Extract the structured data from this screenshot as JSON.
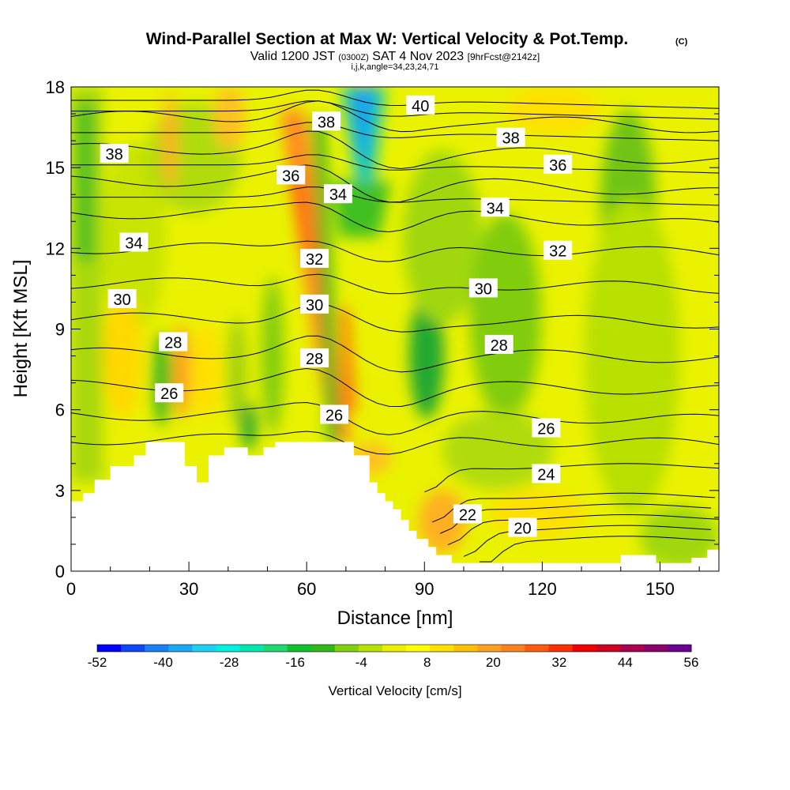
{
  "chart_data": {
    "type": "heatmap",
    "title": "Wind-Parallel Section at Max W: Vertical Velocity & Pot.Temp.",
    "title_mark": "(C)",
    "subtitle": {
      "prefix": "Valid 1200 JST",
      "utc": "(0300Z)",
      "date": "SAT 4 Nov 2023",
      "fcst": "[9hrFcst@2142z]"
    },
    "indices": "i,j,k,angle=34,23,24,71",
    "xlabel": "Distance [nm]",
    "ylabel": "Height [Kft MSL]",
    "xlim": [
      0,
      165
    ],
    "ylim": [
      0,
      18
    ],
    "x_ticks": [
      "0",
      "30",
      "60",
      "90",
      "120",
      "150"
    ],
    "y_ticks": [
      "0",
      "3",
      "6",
      "9",
      "12",
      "15",
      "18"
    ],
    "colorbar": {
      "label": "Vertical Velocity [cm/s]",
      "ticks": [
        "-52",
        "-40",
        "-28",
        "-16",
        "-4",
        "8",
        "20",
        "32",
        "44",
        "56"
      ],
      "colors": [
        "#0000ff",
        "#0d47f5",
        "#1a7ff0",
        "#1aa8f5",
        "#1fd0f5",
        "#00f0e0",
        "#00e8b0",
        "#20d870",
        "#10c030",
        "#30b818",
        "#80d010",
        "#b8e000",
        "#e8f000",
        "#ffff00",
        "#ffe000",
        "#ffc000",
        "#ffa020",
        "#ff8020",
        "#ff5a10",
        "#ff3000",
        "#ee0000",
        "#cc0020",
        "#aa0050",
        "#8a006a",
        "#6a0090"
      ]
    },
    "contours": {
      "variable": "potential temperature",
      "levels": [
        20,
        22,
        24,
        26,
        28,
        30,
        32,
        34,
        36,
        38,
        40
      ],
      "labels": [
        {
          "x": 11,
          "y": 15.5,
          "text": "38"
        },
        {
          "x": 16,
          "y": 12.2,
          "text": "34"
        },
        {
          "x": 13,
          "y": 10.1,
          "text": "30"
        },
        {
          "x": 26,
          "y": 8.5,
          "text": "28"
        },
        {
          "x": 25,
          "y": 6.6,
          "text": "26"
        },
        {
          "x": 56,
          "y": 14.7,
          "text": "36"
        },
        {
          "x": 65,
          "y": 16.7,
          "text": "38"
        },
        {
          "x": 68,
          "y": 14.0,
          "text": "34"
        },
        {
          "x": 62,
          "y": 11.6,
          "text": "32"
        },
        {
          "x": 62,
          "y": 9.9,
          "text": "30"
        },
        {
          "x": 62,
          "y": 7.9,
          "text": "28"
        },
        {
          "x": 67,
          "y": 5.8,
          "text": "26"
        },
        {
          "x": 89,
          "y": 17.3,
          "text": "40"
        },
        {
          "x": 112,
          "y": 16.1,
          "text": "38"
        },
        {
          "x": 124,
          "y": 15.1,
          "text": "36"
        },
        {
          "x": 108,
          "y": 13.5,
          "text": "34"
        },
        {
          "x": 124,
          "y": 11.9,
          "text": "32"
        },
        {
          "x": 105,
          "y": 10.5,
          "text": "30"
        },
        {
          "x": 109,
          "y": 8.4,
          "text": "28"
        },
        {
          "x": 121,
          "y": 5.3,
          "text": "26"
        },
        {
          "x": 121,
          "y": 3.6,
          "text": "24"
        },
        {
          "x": 101,
          "y": 2.1,
          "text": "22"
        },
        {
          "x": 115,
          "y": 1.6,
          "text": "20"
        }
      ]
    },
    "terrain_profile_kft": [
      [
        0,
        2.6
      ],
      [
        3,
        2.6
      ],
      [
        3,
        2.9
      ],
      [
        6,
        2.9
      ],
      [
        6,
        3.4
      ],
      [
        10,
        3.4
      ],
      [
        10,
        3.9
      ],
      [
        16,
        3.9
      ],
      [
        16,
        4.3
      ],
      [
        19,
        4.3
      ],
      [
        19,
        4.8
      ],
      [
        29,
        4.8
      ],
      [
        29,
        3.9
      ],
      [
        32,
        3.9
      ],
      [
        32,
        3.3
      ],
      [
        35,
        3.3
      ],
      [
        35,
        4.3
      ],
      [
        39,
        4.3
      ],
      [
        39,
        4.6
      ],
      [
        45,
        4.6
      ],
      [
        45,
        4.3
      ],
      [
        49,
        4.3
      ],
      [
        49,
        4.6
      ],
      [
        52,
        4.6
      ],
      [
        52,
        4.8
      ],
      [
        72,
        4.8
      ],
      [
        72,
        4.3
      ],
      [
        76,
        4.3
      ],
      [
        76,
        3.3
      ],
      [
        78,
        3.3
      ],
      [
        78,
        2.9
      ],
      [
        80,
        2.9
      ],
      [
        80,
        2.6
      ],
      [
        82,
        2.6
      ],
      [
        82,
        2.3
      ],
      [
        84,
        2.3
      ],
      [
        84,
        1.9
      ],
      [
        86,
        1.9
      ],
      [
        86,
        1.5
      ],
      [
        88,
        1.5
      ],
      [
        88,
        1.2
      ],
      [
        91,
        1.2
      ],
      [
        91,
        0.9
      ],
      [
        93,
        0.9
      ],
      [
        93,
        0.6
      ],
      [
        97,
        0.6
      ],
      [
        97,
        0.3
      ],
      [
        140,
        0.3
      ],
      [
        140,
        0.6
      ],
      [
        149,
        0.6
      ],
      [
        149,
        0.3
      ],
      [
        158,
        0.3
      ],
      [
        158,
        0.5
      ],
      [
        162,
        0.5
      ],
      [
        162,
        0.8
      ],
      [
        165,
        0.8
      ]
    ]
  }
}
